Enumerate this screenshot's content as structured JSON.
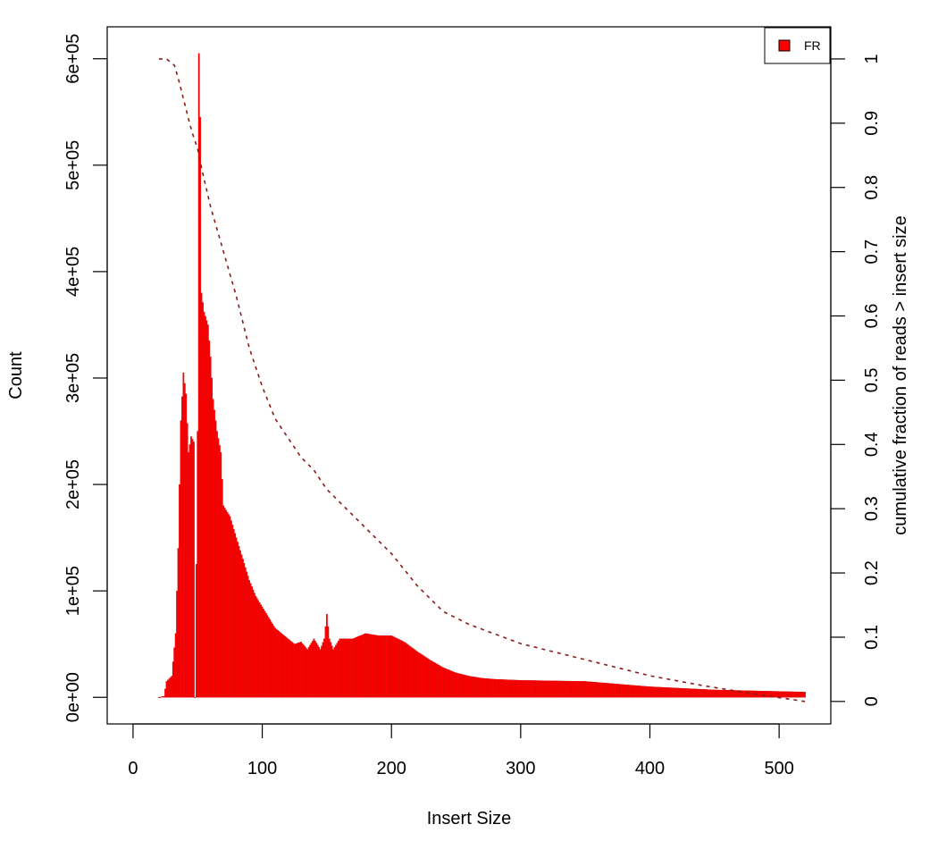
{
  "chart_data": {
    "type": "bar",
    "xlabel": "Insert Size",
    "ylabel": "Count",
    "y2label": "cumulative fraction of reads > insert size",
    "xlim": [
      -20,
      540
    ],
    "ylim": [
      -25000,
      630000
    ],
    "y2lim": [
      -0.035,
      1.05
    ],
    "xticks": [
      0,
      100,
      200,
      300,
      400,
      500
    ],
    "yticks": [
      0,
      100000,
      200000,
      300000,
      400000,
      500000,
      600000
    ],
    "ytick_labels": [
      "0e+00",
      "1e+05",
      "2e+05",
      "3e+05",
      "4e+05",
      "5e+05",
      "6e+05"
    ],
    "y2ticks": [
      0,
      0.1,
      0.2,
      0.3,
      0.4,
      0.5,
      0.6,
      0.7,
      0.8,
      0.9,
      1
    ],
    "y2tick_labels": [
      "0",
      "0.1",
      "0.2",
      "0.3",
      "0.4",
      "0.5",
      "0.6",
      "0.7",
      "0.8",
      "0.9",
      "1"
    ],
    "legend": {
      "label": "FR",
      "position": "top-right",
      "color": "#ff0000"
    },
    "bar_color": "#ff0000",
    "bar_edge_color": "#cc0000",
    "cumulative_line_color": "#8b1a1a",
    "histogram_knots": [
      [
        20,
        0
      ],
      [
        24,
        1000
      ],
      [
        26,
        15000
      ],
      [
        30,
        20000
      ],
      [
        33,
        60000
      ],
      [
        35,
        140000
      ],
      [
        37,
        260000
      ],
      [
        39,
        305000
      ],
      [
        41,
        285000
      ],
      [
        43,
        230000
      ],
      [
        45,
        245000
      ],
      [
        47,
        240000
      ],
      [
        48,
        0
      ],
      [
        50,
        250000
      ],
      [
        51,
        605000
      ],
      [
        52,
        545000
      ],
      [
        53,
        380000
      ],
      [
        55,
        362000
      ],
      [
        58,
        350000
      ],
      [
        60,
        320000
      ],
      [
        62,
        280000
      ],
      [
        65,
        250000
      ],
      [
        68,
        230000
      ],
      [
        70,
        180000
      ],
      [
        75,
        170000
      ],
      [
        80,
        150000
      ],
      [
        85,
        130000
      ],
      [
        90,
        110000
      ],
      [
        95,
        95000
      ],
      [
        100,
        85000
      ],
      [
        105,
        75000
      ],
      [
        110,
        65000
      ],
      [
        115,
        60000
      ],
      [
        120,
        55000
      ],
      [
        125,
        50000
      ],
      [
        130,
        52000
      ],
      [
        135,
        45000
      ],
      [
        140,
        55000
      ],
      [
        145,
        45000
      ],
      [
        148,
        55000
      ],
      [
        150,
        78000
      ],
      [
        152,
        55000
      ],
      [
        155,
        45000
      ],
      [
        160,
        55000
      ],
      [
        170,
        55000
      ],
      [
        180,
        60000
      ],
      [
        190,
        58000
      ],
      [
        200,
        58000
      ],
      [
        210,
        52000
      ],
      [
        220,
        43000
      ],
      [
        230,
        35000
      ],
      [
        240,
        28000
      ],
      [
        250,
        23000
      ],
      [
        260,
        20000
      ],
      [
        270,
        18000
      ],
      [
        280,
        17000
      ],
      [
        300,
        16000
      ],
      [
        350,
        15000
      ],
      [
        400,
        10000
      ],
      [
        450,
        7000
      ],
      [
        520,
        5000
      ]
    ],
    "cumulative_knots": [
      [
        20,
        1.0
      ],
      [
        26,
        1.0
      ],
      [
        32,
        0.99
      ],
      [
        35,
        0.97
      ],
      [
        40,
        0.93
      ],
      [
        45,
        0.89
      ],
      [
        50,
        0.86
      ],
      [
        53,
        0.83
      ],
      [
        60,
        0.77
      ],
      [
        70,
        0.7
      ],
      [
        80,
        0.63
      ],
      [
        90,
        0.55
      ],
      [
        100,
        0.49
      ],
      [
        110,
        0.44
      ],
      [
        120,
        0.41
      ],
      [
        130,
        0.38
      ],
      [
        140,
        0.36
      ],
      [
        150,
        0.33
      ],
      [
        160,
        0.31
      ],
      [
        180,
        0.27
      ],
      [
        200,
        0.23
      ],
      [
        220,
        0.18
      ],
      [
        240,
        0.14
      ],
      [
        260,
        0.12
      ],
      [
        280,
        0.105
      ],
      [
        300,
        0.09
      ],
      [
        330,
        0.075
      ],
      [
        360,
        0.06
      ],
      [
        400,
        0.04
      ],
      [
        440,
        0.025
      ],
      [
        480,
        0.012
      ],
      [
        520,
        0.0
      ]
    ]
  }
}
